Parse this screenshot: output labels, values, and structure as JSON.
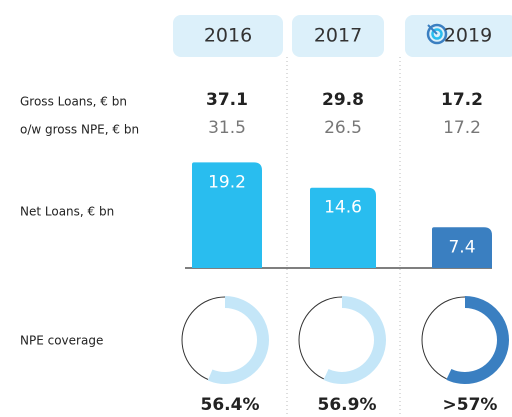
{
  "columns": [
    "2016",
    "2017",
    "2019"
  ],
  "gross_loans": {
    "label": "Gross Loans, € bn",
    "values": [
      37.1,
      29.8,
      17.2
    ]
  },
  "gross_npe": {
    "label": "o/w gross NPE, € bn",
    "values": [
      31.5,
      26.5,
      17.2
    ]
  },
  "chart_data": [
    {
      "type": "bar",
      "label": "Net Loans, € bn",
      "values": [
        19.2,
        14.6,
        7.4
      ],
      "colors": [
        "#29bdef",
        "#29bdef",
        "#3a7fc1"
      ],
      "ylim": [
        0,
        20
      ]
    },
    {
      "type": "donut",
      "label": "NPE coverage",
      "values": [
        56.4,
        56.9,
        57
      ],
      "value_labels": [
        "56.4%",
        "56.9%",
        ">57%"
      ],
      "colors": [
        "#c4e6f8",
        "#c4e6f8",
        "#3a7fc1"
      ],
      "ylim": [
        0,
        100
      ]
    }
  ]
}
